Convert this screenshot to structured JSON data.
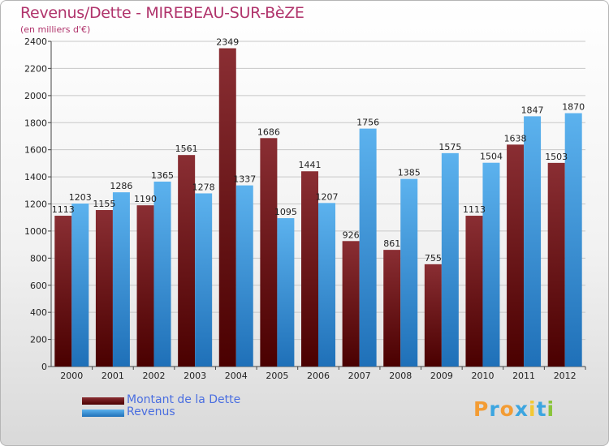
{
  "header": {
    "title": "Revenus/Dette - MIREBEAU-SUR-BèZE",
    "subtitle": "(en milliers d'€)"
  },
  "legend": {
    "dette_label": "Montant de la Dette",
    "revenus_label": "Revenus"
  },
  "logo": {
    "text": "Proxiti",
    "letters": [
      "P",
      "r",
      "o",
      "x",
      "i",
      "t",
      "i"
    ],
    "colors": [
      "#f39c34",
      "#3ca5e0",
      "#f39c34",
      "#3ca5e0",
      "#f3c834",
      "#3ca5e0",
      "#8ac43a"
    ]
  },
  "colors": {
    "dette_dark": "#4a0000",
    "dette_light": "#8a2e33",
    "revenus_dark": "#1f70b8",
    "revenus_light": "#5cb2ee",
    "title": "#b0336b"
  },
  "chart_data": {
    "type": "bar",
    "categories": [
      "2000",
      "2001",
      "2002",
      "2003",
      "2004",
      "2005",
      "2006",
      "2007",
      "2008",
      "2009",
      "2010",
      "2011",
      "2012"
    ],
    "series": [
      {
        "name": "Montant de la Dette",
        "values": [
          1113,
          1155,
          1190,
          1561,
          2349,
          1686,
          1441,
          926,
          861,
          755,
          1113,
          1638,
          1503
        ]
      },
      {
        "name": "Revenus",
        "values": [
          1203,
          1286,
          1365,
          1278,
          1337,
          1095,
          1207,
          1756,
          1385,
          1575,
          1504,
          1847,
          1870
        ]
      }
    ],
    "title": "Revenus/Dette - MIREBEAU-SUR-BèZE",
    "ylabel": "(en milliers d'€)",
    "xlabel": "",
    "ylim": [
      0,
      2400
    ],
    "yticks": [
      0,
      200,
      400,
      600,
      800,
      1000,
      1200,
      1400,
      1600,
      1800,
      2000,
      2200,
      2400
    ],
    "grid": true,
    "legend_position": "bottom-left"
  }
}
